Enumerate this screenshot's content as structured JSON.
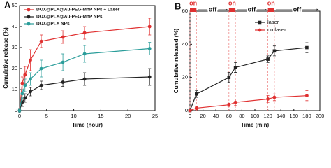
{
  "chart_data": [
    {
      "type": "line",
      "panel_label": "A",
      "x_label": "Time (hour)",
      "y_label": "Cumulative release (%)",
      "x": [
        0,
        0.5,
        1,
        2,
        4,
        8,
        12,
        24
      ],
      "series": [
        {
          "name": "DOX@PLA@Au-PEG-MnP NPs + Laser",
          "color": "#e03030",
          "marker": "circle",
          "values": [
            0,
            13,
            17,
            24,
            33,
            35,
            37,
            40
          ],
          "errors": [
            1,
            3,
            4,
            5,
            3,
            3,
            3,
            4
          ]
        },
        {
          "name": "DOX@PLA@Au-PEG-MnP NPs",
          "color": "#222222",
          "marker": "circle",
          "values": [
            0,
            4,
            6,
            9,
            12,
            13.5,
            15,
            16
          ],
          "errors": [
            1,
            2,
            2,
            2,
            2,
            2,
            3,
            4
          ]
        },
        {
          "name": "DOX@PLA NPs",
          "color": "#2a9d9a",
          "marker": "circle",
          "values": [
            0,
            8,
            12,
            15,
            20,
            23,
            27,
            29.5
          ],
          "errors": [
            1,
            2,
            3,
            3,
            4,
            4,
            4,
            3
          ]
        }
      ],
      "xlim": [
        0,
        25
      ],
      "xticks": [
        0,
        5,
        10,
        15,
        20,
        25
      ],
      "ylim": [
        0,
        50
      ],
      "yticks": [
        0,
        10,
        20,
        30,
        40,
        50
      ],
      "legend": "upper left"
    },
    {
      "type": "line",
      "panel_label": "B",
      "x_label": "Time (min)",
      "y_label": "Cumulative released (%)",
      "x": [
        0,
        10,
        60,
        70,
        120,
        130,
        180
      ],
      "series": [
        {
          "name": "laser",
          "color": "#222222",
          "marker": "square",
          "values": [
            0,
            10,
            20,
            26,
            31,
            36,
            38
          ],
          "errors": [
            0.5,
            2,
            3,
            3,
            2,
            3,
            3
          ]
        },
        {
          "name": "no laser",
          "color": "#e03030",
          "marker": "circle",
          "values": [
            0,
            1.5,
            3.5,
            5,
            7,
            8,
            9
          ],
          "errors": [
            0.5,
            1,
            1,
            2,
            2,
            2,
            3
          ]
        }
      ],
      "phases": [
        {
          "label": "on",
          "start": 0,
          "end": 10
        },
        {
          "label": "off",
          "start": 10,
          "end": 60
        },
        {
          "label": "on",
          "start": 60,
          "end": 70
        },
        {
          "label": "off",
          "start": 70,
          "end": 120
        },
        {
          "label": "on",
          "start": 120,
          "end": 130
        },
        {
          "label": "off",
          "start": 130,
          "end": 200
        }
      ],
      "xlim": [
        0,
        200
      ],
      "xticks": [
        0,
        20,
        40,
        60,
        80,
        100,
        120,
        140,
        160,
        180,
        200
      ],
      "ylim": [
        0,
        60
      ],
      "yticks": [
        0,
        20,
        40,
        60
      ],
      "legend": "upper right"
    }
  ]
}
